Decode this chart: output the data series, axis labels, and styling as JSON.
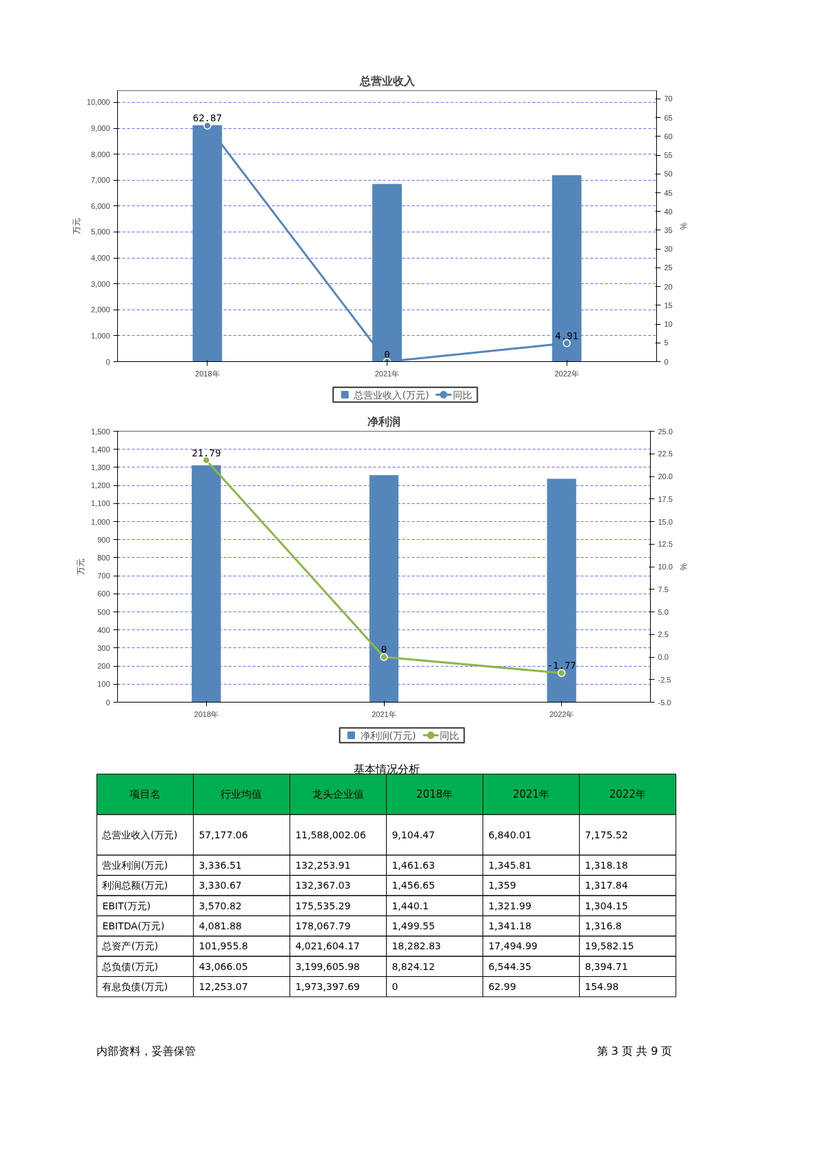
{
  "chart_data": [
    {
      "type": "bar",
      "title": "总营业收入",
      "ylabel": "万元",
      "y2label": "%",
      "categories": [
        "2018年",
        "2021年",
        "2022年"
      ],
      "series": [
        {
          "name": "总营业收入(万元)",
          "type": "bar",
          "color": "#5586bb",
          "values": [
            9104.47,
            6840.01,
            7175.52
          ]
        },
        {
          "name": "同比",
          "type": "line",
          "axis": "y2",
          "color": "#5586bb",
          "values": [
            62.87,
            0,
            4.91
          ],
          "value_labels": [
            "62.87",
            "0",
            "4.91"
          ]
        }
      ],
      "ylim": [
        0,
        10450
      ],
      "yticks": [
        0,
        {
          "value": 1000,
          "label": "1,000"
        },
        {
          "value": 2000,
          "label": "2,000"
        },
        {
          "value": 3000,
          "label": "3,000"
        },
        {
          "value": 4000,
          "label": "4,000"
        },
        {
          "value": 5000,
          "label": "5,000"
        },
        {
          "value": 6000,
          "label": "6,000"
        },
        {
          "value": 7000,
          "label": "7,000"
        },
        {
          "value": 8000,
          "label": "8,000"
        },
        {
          "value": 9000,
          "label": "9,000"
        },
        {
          "value": 10000,
          "label": "10,000"
        }
      ],
      "y2lim": [
        0,
        72.2
      ],
      "y2ticks": [
        0,
        5,
        10,
        15,
        20,
        25,
        30,
        35,
        40,
        45,
        50,
        55,
        60,
        65,
        70
      ],
      "grid": "y",
      "legend": "bottom",
      "marker": "circle",
      "line_style": "solid"
    },
    {
      "type": "bar",
      "title": "净利润",
      "ylabel": "万元",
      "y2label": "%",
      "categories": [
        "2018年",
        "2021年",
        "2022年"
      ],
      "series": [
        {
          "name": "净利润(万元)",
          "type": "bar",
          "color": "#5586bb",
          "values": [
            1310,
            1255,
            1235
          ]
        },
        {
          "name": "同比",
          "type": "line",
          "axis": "y2",
          "color": "#8db748",
          "values": [
            21.79,
            0,
            -1.77
          ],
          "value_labels": [
            "21.79",
            "0",
            "-1.77"
          ]
        }
      ],
      "ylim": [
        0,
        1500
      ],
      "yticks": [
        0,
        100,
        200,
        300,
        400,
        500,
        600,
        700,
        800,
        900,
        {
          "value": 1000,
          "label": "1,000"
        },
        {
          "value": 1100,
          "label": "1,100"
        },
        {
          "value": 1200,
          "label": "1,200"
        },
        {
          "value": 1300,
          "label": "1,300"
        },
        {
          "value": 1400,
          "label": "1,400"
        },
        {
          "value": 1500,
          "label": "1,500"
        }
      ],
      "y2lim": [
        -5,
        25
      ],
      "y2ticks": [
        {
          "value": -5,
          "label": "-5.0"
        },
        {
          "value": -2.5,
          "label": "-2.5"
        },
        {
          "value": 0,
          "label": "0.0"
        },
        {
          "value": 2.5,
          "label": "2.5"
        },
        {
          "value": 5,
          "label": "5.0"
        },
        {
          "value": 7.5,
          "label": "7.5"
        },
        {
          "value": 10,
          "label": "10.0"
        },
        {
          "value": 12.5,
          "label": "12.5"
        },
        {
          "value": 15,
          "label": "15.0"
        },
        {
          "value": 17.5,
          "label": "17.5"
        },
        {
          "value": 20,
          "label": "20.0"
        },
        {
          "value": 22.5,
          "label": "22.5"
        },
        {
          "value": 25,
          "label": "25.0"
        }
      ],
      "grid": "y",
      "legend": "bottom",
      "marker": "circle",
      "line_style": "solid"
    },
    {
      "type": "other",
      "title": "基本情况分析",
      "color": "#00b050",
      "categories": [
        "项目名",
        "行业均值",
        "龙头企业值",
        "2018年",
        "2021年",
        "2022年"
      ],
      "y_categories": [
        "总营业收入(万元)",
        "营业利润(万元)",
        "利润总额(万元)",
        "EBIT(万元)",
        "EBITDA(万元)",
        "总资产(万元)",
        "总负债(万元)",
        "有息负债(万元)"
      ],
      "cell_labels": [
        [
          "57,177.06",
          "11,588,002.06",
          "9,104.47",
          "6,840.01",
          "7,175.52"
        ],
        [
          "3,336.51",
          "132,253.91",
          "1,461.63",
          "1,345.81",
          "1,318.18"
        ],
        [
          "3,330.67",
          "132,367.03",
          "1,456.65",
          "1,359",
          "1,317.84"
        ],
        [
          "3,570.82",
          "175,535.29",
          "1,440.1",
          "1,321.99",
          "1,304.15"
        ],
        [
          "4,081.88",
          "178,067.79",
          "1,499.55",
          "1,341.18",
          "1,316.8"
        ],
        [
          "101,955.8",
          "4,021,604.17",
          "18,282.83",
          "17,494.99",
          "19,582.15"
        ],
        [
          "43,066.05",
          "3,199,605.98",
          "8,824.12",
          "6,544.35",
          "8,394.71"
        ],
        [
          "12,253.07",
          "1,973,397.69",
          "0",
          "62.99",
          "154.98"
        ]
      ],
      "annotations": [
        "内部资料，妥善保管",
        "第 3 页  共 9 页"
      ]
    }
  ]
}
